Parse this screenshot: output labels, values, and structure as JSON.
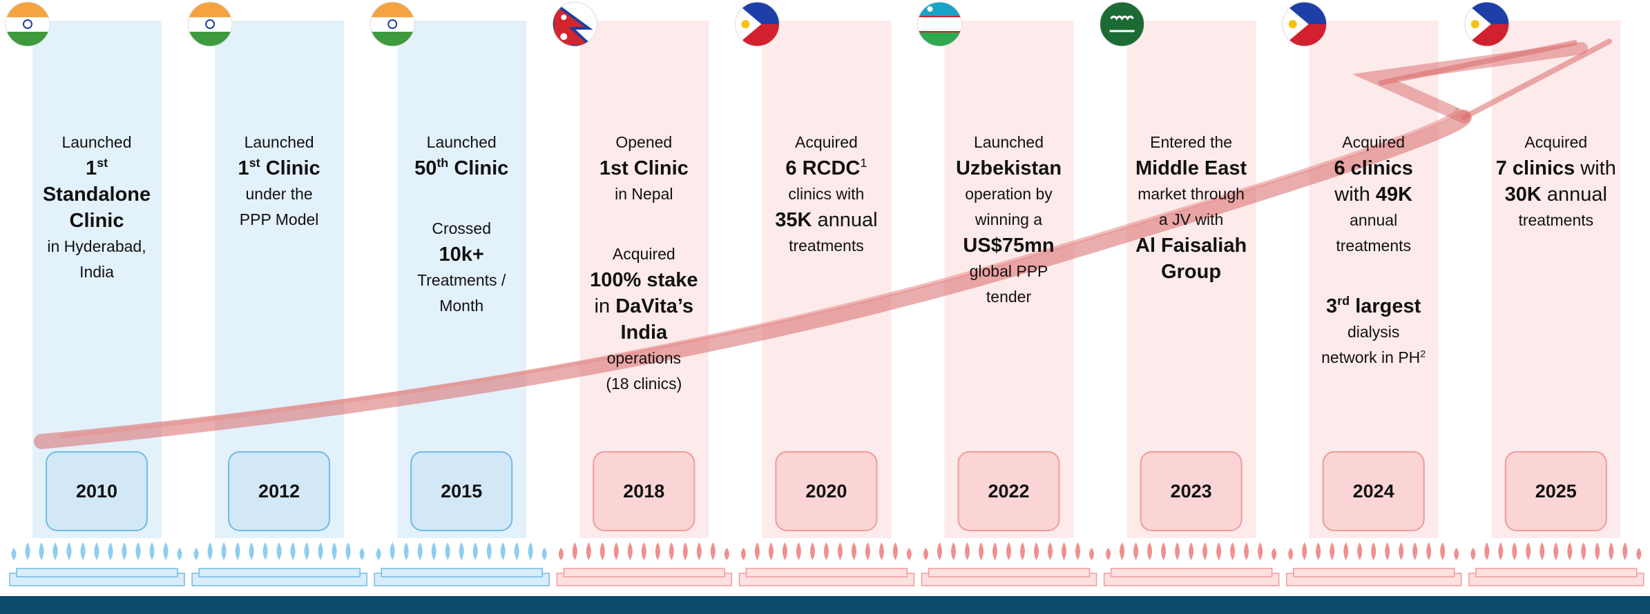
{
  "milestones": [
    {
      "year": "2010",
      "theme": "blue",
      "flag": "IN",
      "paragraphs": [
        [
          [
            {
              "text": "Launched"
            }
          ],
          [
            {
              "text": "1",
              "bold": true
            },
            {
              "text": "st",
              "bold": true,
              "sup": true
            }
          ],
          [
            {
              "text": "Standalone",
              "bold": true
            }
          ],
          [
            {
              "text": "Clinic",
              "bold": true
            }
          ],
          [
            {
              "text": "in Hyderabad,"
            }
          ],
          [
            {
              "text": "India"
            }
          ]
        ]
      ]
    },
    {
      "year": "2012",
      "theme": "blue",
      "flag": "IN",
      "paragraphs": [
        [
          [
            {
              "text": "Launched"
            }
          ],
          [
            {
              "text": "1",
              "bold": true
            },
            {
              "text": "st",
              "bold": true,
              "sup": true
            },
            {
              "text": " Clinic",
              "bold": true
            }
          ],
          [
            {
              "text": "under the"
            }
          ],
          [
            {
              "text": "PPP Model"
            }
          ]
        ]
      ]
    },
    {
      "year": "2015",
      "theme": "blue",
      "flag": "IN",
      "paragraphs": [
        [
          [
            {
              "text": "Launched"
            }
          ],
          [
            {
              "text": "50",
              "bold": true
            },
            {
              "text": "th",
              "bold": true,
              "sup": true
            },
            {
              "text": " Clinic",
              "bold": true
            }
          ]
        ],
        [
          [
            {
              "text": "Crossed"
            }
          ],
          [
            {
              "text": "10k+",
              "bold": true
            }
          ],
          [
            {
              "text": "Treatments /"
            }
          ],
          [
            {
              "text": "Month"
            }
          ]
        ]
      ]
    },
    {
      "year": "2018",
      "theme": "red",
      "flag": "NP",
      "paragraphs": [
        [
          [
            {
              "text": "Opened"
            }
          ],
          [
            {
              "text": "1st Clinic",
              "bold": true
            }
          ],
          [
            {
              "text": "in Nepal"
            }
          ]
        ],
        [
          [
            {
              "text": "Acquired"
            }
          ],
          [
            {
              "text": "100% stake",
              "bold": true
            }
          ],
          [
            {
              "text": "in "
            },
            {
              "text": "DaVita’s",
              "bold": true
            }
          ],
          [
            {
              "text": "India",
              "bold": true
            }
          ],
          [
            {
              "text": "operations"
            }
          ],
          [
            {
              "text": "(18 clinics)"
            }
          ]
        ]
      ]
    },
    {
      "year": "2020",
      "theme": "red",
      "flag": "PH",
      "paragraphs": [
        [
          [
            {
              "text": "Acquired"
            }
          ],
          [
            {
              "text": "6 RCDC",
              "bold": true
            },
            {
              "text": "1",
              "sup": true
            }
          ],
          [
            {
              "text": "clinics with"
            }
          ],
          [
            {
              "text": "35K",
              "bold": true
            },
            {
              "text": " annual"
            }
          ],
          [
            {
              "text": "treatments"
            }
          ]
        ]
      ]
    },
    {
      "year": "2022",
      "theme": "red",
      "flag": "UZ",
      "paragraphs": [
        [
          [
            {
              "text": "Launched"
            }
          ],
          [
            {
              "text": "Uzbekistan",
              "bold": true
            }
          ],
          [
            {
              "text": "operation by"
            }
          ],
          [
            {
              "text": "winning a"
            }
          ],
          [
            {
              "text": "US$75mn",
              "bold": true
            }
          ],
          [
            {
              "text": "global PPP"
            }
          ],
          [
            {
              "text": "tender"
            }
          ]
        ]
      ]
    },
    {
      "year": "2023",
      "theme": "red",
      "flag": "SA",
      "paragraphs": [
        [
          [
            {
              "text": "Entered the"
            }
          ],
          [
            {
              "text": "Middle East",
              "bold": true
            }
          ],
          [
            {
              "text": "market through"
            }
          ],
          [
            {
              "text": "a JV with"
            }
          ],
          [
            {
              "text": "Al Faisaliah",
              "bold": true
            }
          ],
          [
            {
              "text": "Group",
              "bold": true
            }
          ]
        ]
      ]
    },
    {
      "year": "2024",
      "theme": "red",
      "flag": "PH",
      "paragraphs": [
        [
          [
            {
              "text": "Acquired"
            }
          ],
          [
            {
              "text": "6 clinics",
              "bold": true
            }
          ],
          [
            {
              "text": "with "
            },
            {
              "text": "49K",
              "bold": true
            }
          ],
          [
            {
              "text": "annual"
            }
          ],
          [
            {
              "text": "treatments"
            }
          ]
        ],
        [
          [
            {
              "text": "3",
              "bold": true
            },
            {
              "text": "rd",
              "bold": true,
              "sup": true
            },
            {
              "text": " largest",
              "bold": true
            }
          ],
          [
            {
              "text": "dialysis"
            }
          ],
          [
            {
              "text": "network in PH"
            },
            {
              "text": "2",
              "sup": true
            }
          ]
        ]
      ]
    },
    {
      "year": "2025",
      "theme": "red",
      "flag": "PH",
      "paragraphs": [
        [
          [
            {
              "text": "Acquired"
            }
          ],
          [
            {
              "text": "7 clinics",
              "bold": true
            },
            {
              "text": " with"
            }
          ],
          [
            {
              "text": "30K",
              "bold": true
            },
            {
              "text": " annual"
            }
          ],
          [
            {
              "text": "treatments"
            }
          ]
        ]
      ]
    }
  ]
}
